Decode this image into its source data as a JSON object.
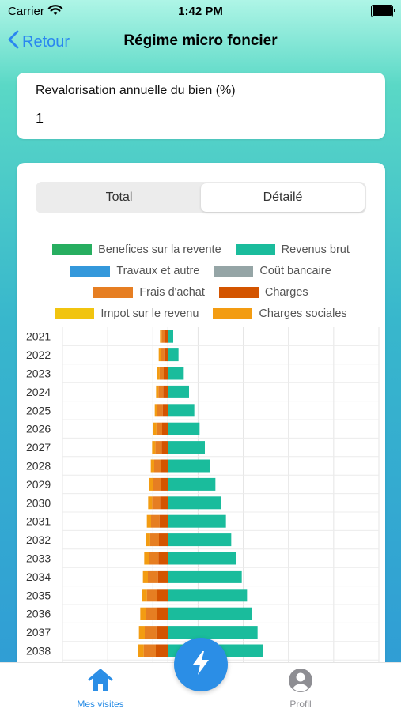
{
  "status_bar": {
    "carrier": "Carrier",
    "time": "1:42 PM"
  },
  "nav": {
    "back_label": "Retour",
    "title": "Régime micro foncier"
  },
  "input": {
    "label": "Revalorisation annuelle du bien (%)",
    "value": "1"
  },
  "segmented": {
    "options": [
      "Total",
      "Détailé"
    ],
    "selected": "Détailé"
  },
  "legend": [
    {
      "label": "Benefices sur la revente",
      "color": "#27ae60"
    },
    {
      "label": "Revenus brut",
      "color": "#1abc9c"
    },
    {
      "label": "Travaux et autre",
      "color": "#3498db"
    },
    {
      "label": "Coût bancaire",
      "color": "#95a5a6"
    },
    {
      "label": "Frais d'achat",
      "color": "#e67e22"
    },
    {
      "label": "Charges",
      "color": "#d35400"
    },
    {
      "label": "Impot sur le revenu",
      "color": "#f1c40f"
    },
    {
      "label": "Charges sociales",
      "color": "#f39c12"
    }
  ],
  "chart_data": {
    "type": "bar",
    "orientation": "horizontal",
    "stacked": true,
    "categories": [
      "2021",
      "2022",
      "2023",
      "2024",
      "2025",
      "2026",
      "2027",
      "2028",
      "2029",
      "2030",
      "2031",
      "2032",
      "2033",
      "2034",
      "2035",
      "2036",
      "2037",
      "2038"
    ],
    "series": [
      {
        "name": "Benefices sur la revente",
        "color": "#27ae60",
        "values": [
          0,
          0,
          0,
          0,
          0,
          0,
          0,
          0,
          0,
          0,
          0,
          0,
          0,
          0,
          0,
          0,
          0,
          0
        ]
      },
      {
        "name": "Revenus brut",
        "color": "#1abc9c",
        "values": [
          1,
          2,
          3,
          4,
          5,
          6,
          7,
          8,
          9,
          10,
          11,
          12,
          13,
          14,
          15,
          16,
          17,
          18
        ]
      },
      {
        "name": "Charges",
        "color": "#d35400",
        "values": [
          -0.6,
          -0.7,
          -0.8,
          -0.9,
          -1.0,
          -1.1,
          -1.2,
          -1.3,
          -1.4,
          -1.5,
          -1.6,
          -1.7,
          -1.8,
          -1.9,
          -2.0,
          -2.1,
          -2.2,
          -2.3
        ]
      },
      {
        "name": "Frais d'achat",
        "color": "#e67e22",
        "values": [
          -0.6,
          -0.7,
          -0.8,
          -0.9,
          -1.0,
          -1.1,
          -1.2,
          -1.3,
          -1.4,
          -1.5,
          -1.6,
          -1.7,
          -1.8,
          -1.9,
          -2.0,
          -2.1,
          -2.2,
          -2.3
        ]
      },
      {
        "name": "Charges sociales",
        "color": "#f39c12",
        "values": [
          -0.3,
          -0.35,
          -0.4,
          -0.45,
          -0.5,
          -0.55,
          -0.6,
          -0.65,
          -0.7,
          -0.75,
          -0.8,
          -0.85,
          -0.9,
          -0.95,
          -1.0,
          -1.05,
          -1.1,
          -1.15
        ]
      }
    ],
    "xlim": [
      -20,
      40
    ],
    "grid": true,
    "legend_position": "top"
  },
  "tab_bar": {
    "home_label": "Mes visites",
    "profile_label": "Profil"
  }
}
